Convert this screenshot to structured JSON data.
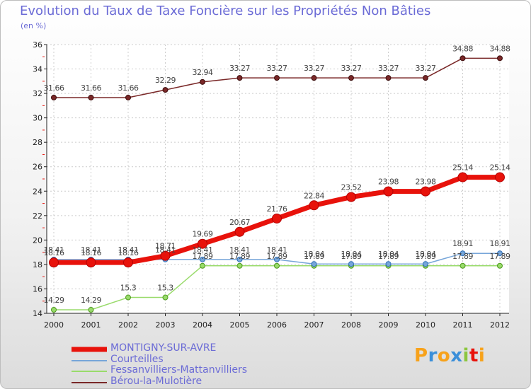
{
  "header": {
    "title": "Evolution du Taux de Taxe Foncière sur les Propriétés Non Bâties",
    "unit": "(en %)"
  },
  "chart_data": {
    "type": "line",
    "x": [
      "2000",
      "2001",
      "2002",
      "2003",
      "2004",
      "2005",
      "2006",
      "2007",
      "2008",
      "2009",
      "2010",
      "2011",
      "2012"
    ],
    "ylim": [
      14,
      36
    ],
    "yticks": [
      14,
      16,
      18,
      20,
      22,
      24,
      26,
      28,
      30,
      32,
      34,
      36
    ],
    "grid": true,
    "legend_position": "bottom-left",
    "series": [
      {
        "name": "MONTIGNY-SUR-AVRE",
        "color": "#e8120b",
        "values": [
          18.16,
          18.16,
          18.16,
          18.71,
          19.69,
          20.67,
          21.76,
          22.84,
          23.52,
          23.98,
          23.98,
          25.14,
          25.14
        ],
        "labels": [
          "18.16",
          "18.16",
          "18.16",
          "18.71",
          "19.69",
          "20.67",
          "21.76",
          "22.84",
          "23.52",
          "23.98",
          "23.98",
          "25.14",
          "25.14"
        ]
      },
      {
        "name": "Courteilles",
        "color": "#77a6d9",
        "values": [
          18.41,
          18.41,
          18.41,
          18.41,
          18.41,
          18.41,
          18.41,
          18.04,
          18.04,
          18.04,
          18.04,
          18.91,
          18.91
        ],
        "labels": [
          "18.41",
          "18.41",
          "18.41",
          "18.41",
          "18.41",
          "18.41",
          "18.41",
          "18.04",
          "18.04",
          "18.04",
          "18.04",
          "18.91",
          "18.91"
        ]
      },
      {
        "name": "Fessanvilliers-Mattanvilliers",
        "color": "#99db6b",
        "values": [
          14.29,
          14.29,
          15.3,
          15.3,
          17.89,
          17.89,
          17.89,
          17.89,
          17.89,
          17.89,
          17.89,
          17.89,
          17.89
        ],
        "labels": [
          "14.29",
          "14.29",
          "15.3",
          "15.3",
          "17.89",
          "17.89",
          "17.89",
          "17.89",
          "17.89",
          "17.89",
          "17.89",
          "17.89",
          "17.89"
        ]
      },
      {
        "name": "Bérou-la-Mulotière",
        "color": "#7a2828",
        "values": [
          31.66,
          31.66,
          31.66,
          32.29,
          32.94,
          33.27,
          33.27,
          33.27,
          33.27,
          33.27,
          33.27,
          34.88,
          34.88
        ],
        "labels": [
          "31.66",
          "31.66",
          "31.66",
          "32.29",
          "32.94",
          "33.27",
          "33.27",
          "33.27",
          "33.27",
          "33.27",
          "33.27",
          "34.88",
          "34.88"
        ]
      }
    ]
  },
  "logo": {
    "letters": [
      "P",
      "r",
      "o",
      "x",
      "i",
      "t",
      "i"
    ],
    "colors": [
      "#f7a21b",
      "#3b8fd9",
      "#f7a21b",
      "#3b8fd9",
      "#8cc63f",
      "#e8120b",
      "#f7a21b"
    ]
  }
}
